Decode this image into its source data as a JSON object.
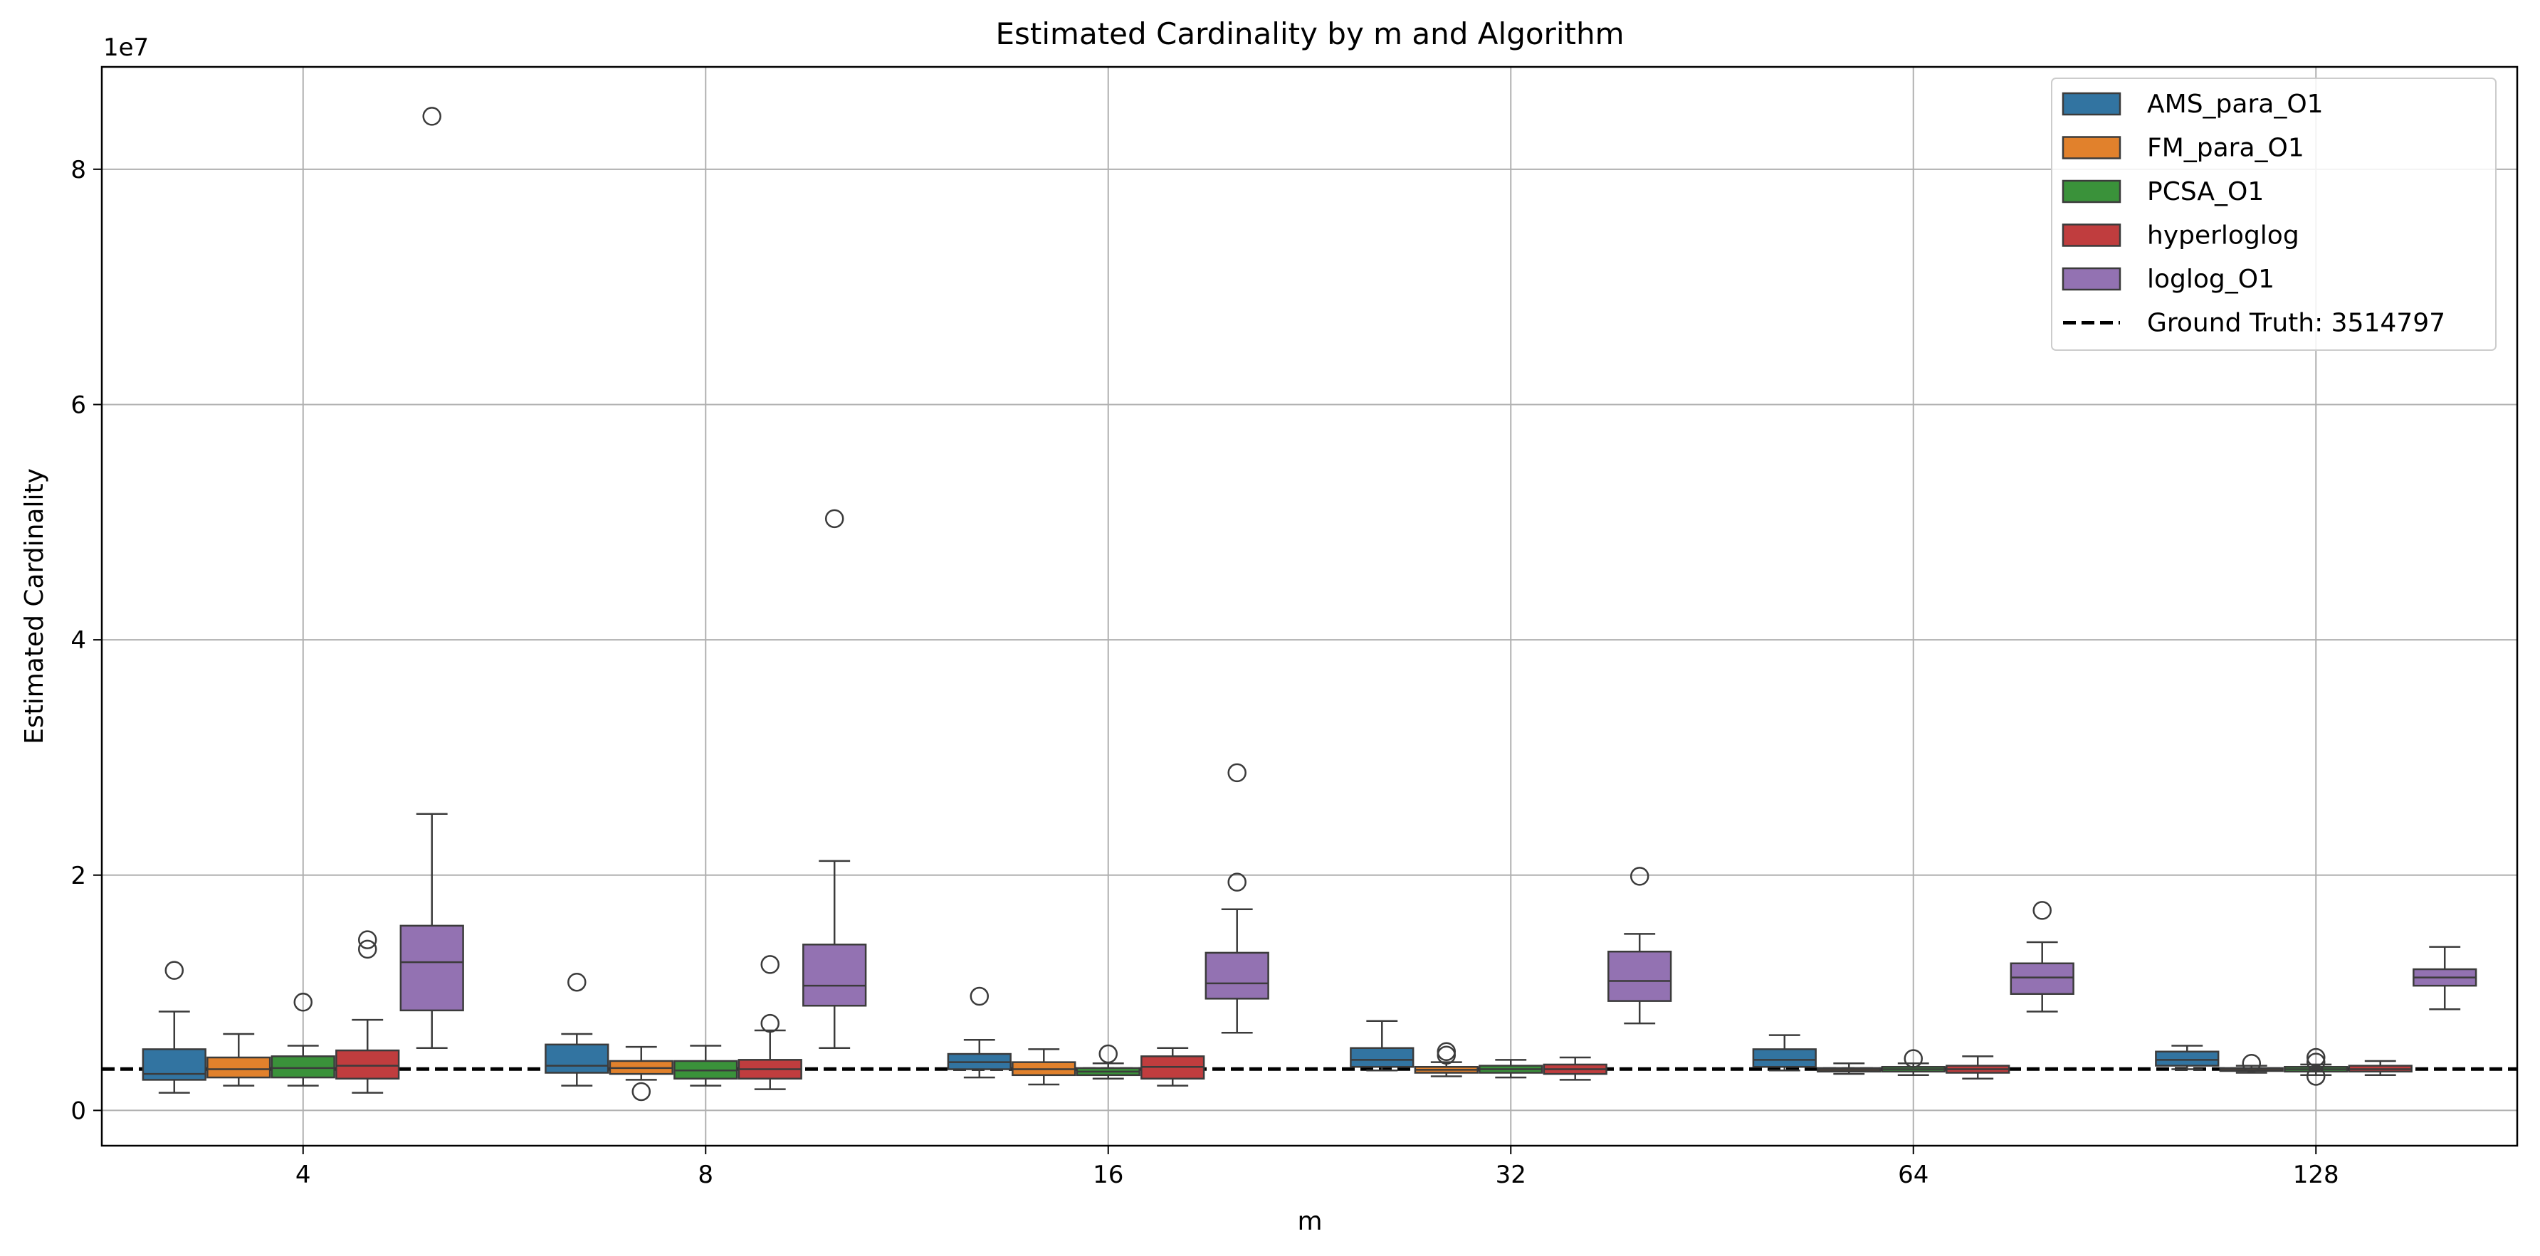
{
  "chart_data": {
    "type": "box",
    "title": "Estimated Cardinality by m and Algorithm",
    "xlabel": "m",
    "ylabel": "Estimated Cardinality",
    "y_offset_label": "1e7",
    "y_scale": 10000000,
    "ylim": [
      -3000000,
      88700000
    ],
    "yticks": [
      0,
      20000000,
      40000000,
      60000000,
      80000000
    ],
    "ytick_labels": [
      "0",
      "2",
      "4",
      "6",
      "8"
    ],
    "categories": [
      "4",
      "8",
      "16",
      "32",
      "64",
      "128"
    ],
    "grid": true,
    "legend_position": "top-right",
    "reference_line": {
      "label": "Ground Truth: 3514797",
      "value": 3514797,
      "style": "dashed",
      "color": "#000000"
    },
    "series": [
      {
        "name": "AMS_para_O1",
        "color": "#3274a1",
        "boxes": [
          {
            "whislo": 1500000,
            "q1": 2600000,
            "med": 3100000,
            "q3": 5200000,
            "whishi": 8400000,
            "fliers": [
              11900000
            ]
          },
          {
            "whislo": 2100000,
            "q1": 3200000,
            "med": 3800000,
            "q3": 5600000,
            "whishi": 6500000,
            "fliers": [
              10900000
            ]
          },
          {
            "whislo": 2800000,
            "q1": 3500000,
            "med": 4100000,
            "q3": 4800000,
            "whishi": 6000000,
            "fliers": [
              9700000
            ]
          },
          {
            "whislo": 3400000,
            "q1": 3700000,
            "med": 4300000,
            "q3": 5300000,
            "whishi": 7600000,
            "fliers": []
          },
          {
            "whislo": 3400000,
            "q1": 3700000,
            "med": 4300000,
            "q3": 5200000,
            "whishi": 6400000,
            "fliers": []
          },
          {
            "whislo": 3500000,
            "q1": 3800000,
            "med": 4300000,
            "q3": 5000000,
            "whishi": 5500000,
            "fliers": []
          }
        ]
      },
      {
        "name": "FM_para_O1",
        "color": "#e1812c",
        "boxes": [
          {
            "whislo": 2100000,
            "q1": 2800000,
            "med": 3500000,
            "q3": 4500000,
            "whishi": 6500000,
            "fliers": []
          },
          {
            "whislo": 2600000,
            "q1": 3100000,
            "med": 3600000,
            "q3": 4200000,
            "whishi": 5400000,
            "fliers": [
              1600000
            ]
          },
          {
            "whislo": 2200000,
            "q1": 3000000,
            "med": 3500000,
            "q3": 4100000,
            "whishi": 5200000,
            "fliers": []
          },
          {
            "whislo": 2900000,
            "q1": 3200000,
            "med": 3450000,
            "q3": 3700000,
            "whishi": 4100000,
            "fliers": [
              4700000,
              5000000
            ]
          },
          {
            "whislo": 3100000,
            "q1": 3300000,
            "med": 3450000,
            "q3": 3600000,
            "whishi": 4000000,
            "fliers": []
          },
          {
            "whislo": 3200000,
            "q1": 3350000,
            "med": 3450000,
            "q3": 3600000,
            "whishi": 3800000,
            "fliers": [
              4000000
            ]
          }
        ]
      },
      {
        "name": "PCSA_O1",
        "color": "#3a923a",
        "boxes": [
          {
            "whislo": 2100000,
            "q1": 2800000,
            "med": 3600000,
            "q3": 4600000,
            "whishi": 5500000,
            "fliers": [
              9200000
            ]
          },
          {
            "whislo": 2100000,
            "q1": 2700000,
            "med": 3400000,
            "q3": 4200000,
            "whishi": 5500000,
            "fliers": []
          },
          {
            "whislo": 2700000,
            "q1": 3000000,
            "med": 3300000,
            "q3": 3600000,
            "whishi": 4000000,
            "fliers": [
              4800000
            ]
          },
          {
            "whislo": 2800000,
            "q1": 3200000,
            "med": 3500000,
            "q3": 3800000,
            "whishi": 4300000,
            "fliers": []
          },
          {
            "whislo": 3000000,
            "q1": 3300000,
            "med": 3500000,
            "q3": 3700000,
            "whishi": 4000000,
            "fliers": [
              4400000
            ]
          },
          {
            "whislo": 3000000,
            "q1": 3300000,
            "med": 3500000,
            "q3": 3700000,
            "whishi": 3900000,
            "fliers": [
              2900000,
              4100000,
              4500000
            ]
          }
        ]
      },
      {
        "name": "hyperloglog",
        "color": "#c03d3e",
        "boxes": [
          {
            "whislo": 1500000,
            "q1": 2700000,
            "med": 3800000,
            "q3": 5100000,
            "whishi": 7700000,
            "fliers": [
              13700000,
              14500000
            ]
          },
          {
            "whislo": 1800000,
            "q1": 2700000,
            "med": 3500000,
            "q3": 4300000,
            "whishi": 6800000,
            "fliers": [
              7400000,
              12400000
            ]
          },
          {
            "whislo": 2100000,
            "q1": 2700000,
            "med": 3700000,
            "q3": 4600000,
            "whishi": 5300000,
            "fliers": []
          },
          {
            "whislo": 2600000,
            "q1": 3100000,
            "med": 3500000,
            "q3": 3900000,
            "whishi": 4500000,
            "fliers": []
          },
          {
            "whislo": 2700000,
            "q1": 3200000,
            "med": 3500000,
            "q3": 3800000,
            "whishi": 4600000,
            "fliers": []
          },
          {
            "whislo": 3000000,
            "q1": 3300000,
            "med": 3500000,
            "q3": 3800000,
            "whishi": 4200000,
            "fliers": []
          }
        ]
      },
      {
        "name": "loglog_O1",
        "color": "#9372b2",
        "boxes": [
          {
            "whislo": 5300000,
            "q1": 8500000,
            "med": 12600000,
            "q3": 15700000,
            "whishi": 25200000,
            "fliers": [
              84500000
            ]
          },
          {
            "whislo": 5300000,
            "q1": 8900000,
            "med": 10600000,
            "q3": 14100000,
            "whishi": 21200000,
            "fliers": [
              50300000
            ]
          },
          {
            "whislo": 6600000,
            "q1": 9500000,
            "med": 10800000,
            "q3": 13400000,
            "whishi": 17100000,
            "fliers": [
              19400000,
              28700000
            ]
          },
          {
            "whislo": 7400000,
            "q1": 9300000,
            "med": 11000000,
            "q3": 13500000,
            "whishi": 15000000,
            "fliers": [
              19900000
            ]
          },
          {
            "whislo": 8400000,
            "q1": 9900000,
            "med": 11300000,
            "q3": 12500000,
            "whishi": 14300000,
            "fliers": [
              17000000
            ]
          },
          {
            "whislo": 8600000,
            "q1": 10600000,
            "med": 11300000,
            "q3": 12000000,
            "whishi": 13900000,
            "fliers": []
          }
        ]
      }
    ]
  }
}
